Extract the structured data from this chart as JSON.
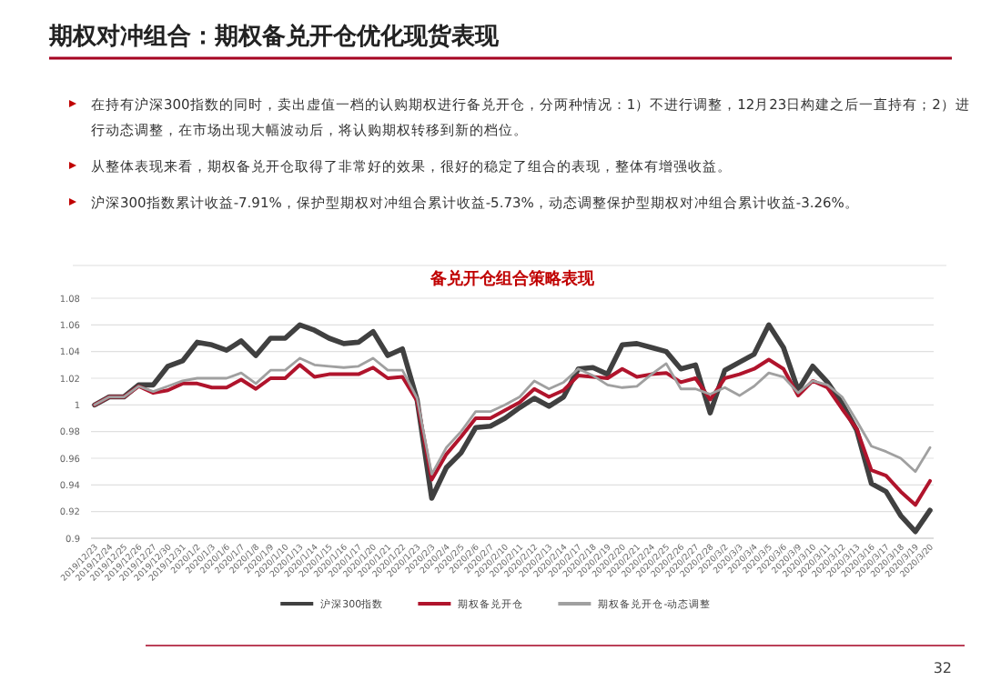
{
  "chart_data": {
    "type": "line",
    "title": "期权对冲组合：期权备兑开仓优化现货表现",
    "subtitle": "备兑开仓组合策略表现",
    "annotations": [
      "在持有沪深300指数的同时，卖出虚值一档的认购期权进行备兑开仓，分两种情况：1）不进行调整，12月23日构建之后一直持有；2）进行动态调整，在市场出现大幅波动后，将认购期权转移到新的档位。",
      "从整体表现来看，期权备兑开仓取得了非常好的效果，很好的稳定了组合的表现，整体有增强收益。",
      "沪深300指数累计收益-7.91%，保护型期权对冲组合累计收益-5.73%，动态调整保护型期权对冲组合累计收益-3.26%。",
      "32"
    ],
    "categories": [
      "2019/12/23",
      "2019/12/24",
      "2019/12/25",
      "2019/12/26",
      "2019/12/27",
      "2019/12/30",
      "2019/12/31",
      "2020/1/2",
      "2020/1/3",
      "2020/1/6",
      "2020/1/7",
      "2020/1/8",
      "2020/1/9",
      "2020/1/10",
      "2020/1/13",
      "2020/1/14",
      "2020/1/15",
      "2020/1/16",
      "2020/1/17",
      "2020/1/20",
      "2020/1/21",
      "2020/1/22",
      "2020/1/23",
      "2020/2/3",
      "2020/2/4",
      "2020/2/5",
      "2020/2/6",
      "2020/2/7",
      "2020/2/10",
      "2020/2/11",
      "2020/2/12",
      "2020/2/13",
      "2020/2/14",
      "2020/2/17",
      "2020/2/18",
      "2020/2/19",
      "2020/2/20",
      "2020/2/21",
      "2020/2/24",
      "2020/2/25",
      "2020/2/26",
      "2020/2/27",
      "2020/2/28",
      "2020/3/2",
      "2020/3/3",
      "2020/3/4",
      "2020/3/5",
      "2020/3/6",
      "2020/3/9",
      "2020/3/10",
      "2020/3/11",
      "2020/3/12",
      "2020/3/13",
      "2020/3/16",
      "2020/3/17",
      "2020/3/18",
      "2020/3/19",
      "2020/3/20"
    ],
    "series": [
      {
        "name": "沪深300指数",
        "color": "#404040",
        "values": [
          1.0,
          1.006,
          1.006,
          1.015,
          1.015,
          1.029,
          1.033,
          1.047,
          1.045,
          1.041,
          1.048,
          1.037,
          1.05,
          1.05,
          1.06,
          1.056,
          1.05,
          1.046,
          1.047,
          1.055,
          1.037,
          1.042,
          1.004,
          0.93,
          0.953,
          0.964,
          0.983,
          0.984,
          0.99,
          0.998,
          1.005,
          0.999,
          1.006,
          1.027,
          1.028,
          1.023,
          1.045,
          1.046,
          1.043,
          1.04,
          1.027,
          1.03,
          0.994,
          1.026,
          1.032,
          1.038,
          1.06,
          1.043,
          1.011,
          1.029,
          1.017,
          1.001,
          0.981,
          0.941,
          0.935,
          0.917,
          0.905,
          0.921
        ]
      },
      {
        "name": "期权备兑开仓",
        "color": "#b0142c",
        "values": [
          1.0,
          1.006,
          1.006,
          1.014,
          1.009,
          1.011,
          1.016,
          1.016,
          1.013,
          1.013,
          1.019,
          1.012,
          1.02,
          1.02,
          1.03,
          1.021,
          1.023,
          1.023,
          1.023,
          1.028,
          1.02,
          1.021,
          1.003,
          0.944,
          0.963,
          0.976,
          0.99,
          0.99,
          0.996,
          1.002,
          1.012,
          1.006,
          1.011,
          1.022,
          1.021,
          1.02,
          1.027,
          1.021,
          1.023,
          1.024,
          1.017,
          1.02,
          1.004,
          1.02,
          1.023,
          1.027,
          1.034,
          1.027,
          1.007,
          1.018,
          1.013,
          0.997,
          0.982,
          0.951,
          0.947,
          0.935,
          0.925,
          0.943
        ]
      },
      {
        "name": "期权备兑开仓-动态调整",
        "color": "#a0a0a0",
        "values": [
          1.0,
          1.006,
          1.006,
          1.014,
          1.01,
          1.014,
          1.018,
          1.02,
          1.02,
          1.02,
          1.024,
          1.016,
          1.026,
          1.026,
          1.035,
          1.03,
          1.029,
          1.028,
          1.029,
          1.035,
          1.026,
          1.026,
          1.005,
          0.948,
          0.968,
          0.98,
          0.995,
          0.995,
          1.0,
          1.006,
          1.018,
          1.012,
          1.017,
          1.027,
          1.022,
          1.015,
          1.013,
          1.014,
          1.023,
          1.031,
          1.012,
          1.012,
          1.008,
          1.013,
          1.007,
          1.014,
          1.024,
          1.021,
          1.009,
          1.018,
          1.015,
          1.006,
          0.988,
          0.969,
          0.965,
          0.96,
          0.95,
          0.968
        ]
      }
    ],
    "ylim": [
      0.9,
      1.08
    ],
    "yticks": [
      0.9,
      0.92,
      0.94,
      0.96,
      0.98,
      1,
      1.02,
      1.04,
      1.06,
      1.08
    ],
    "grid": "y",
    "legend": "bottom",
    "marker": "none",
    "line_style": "solid"
  }
}
